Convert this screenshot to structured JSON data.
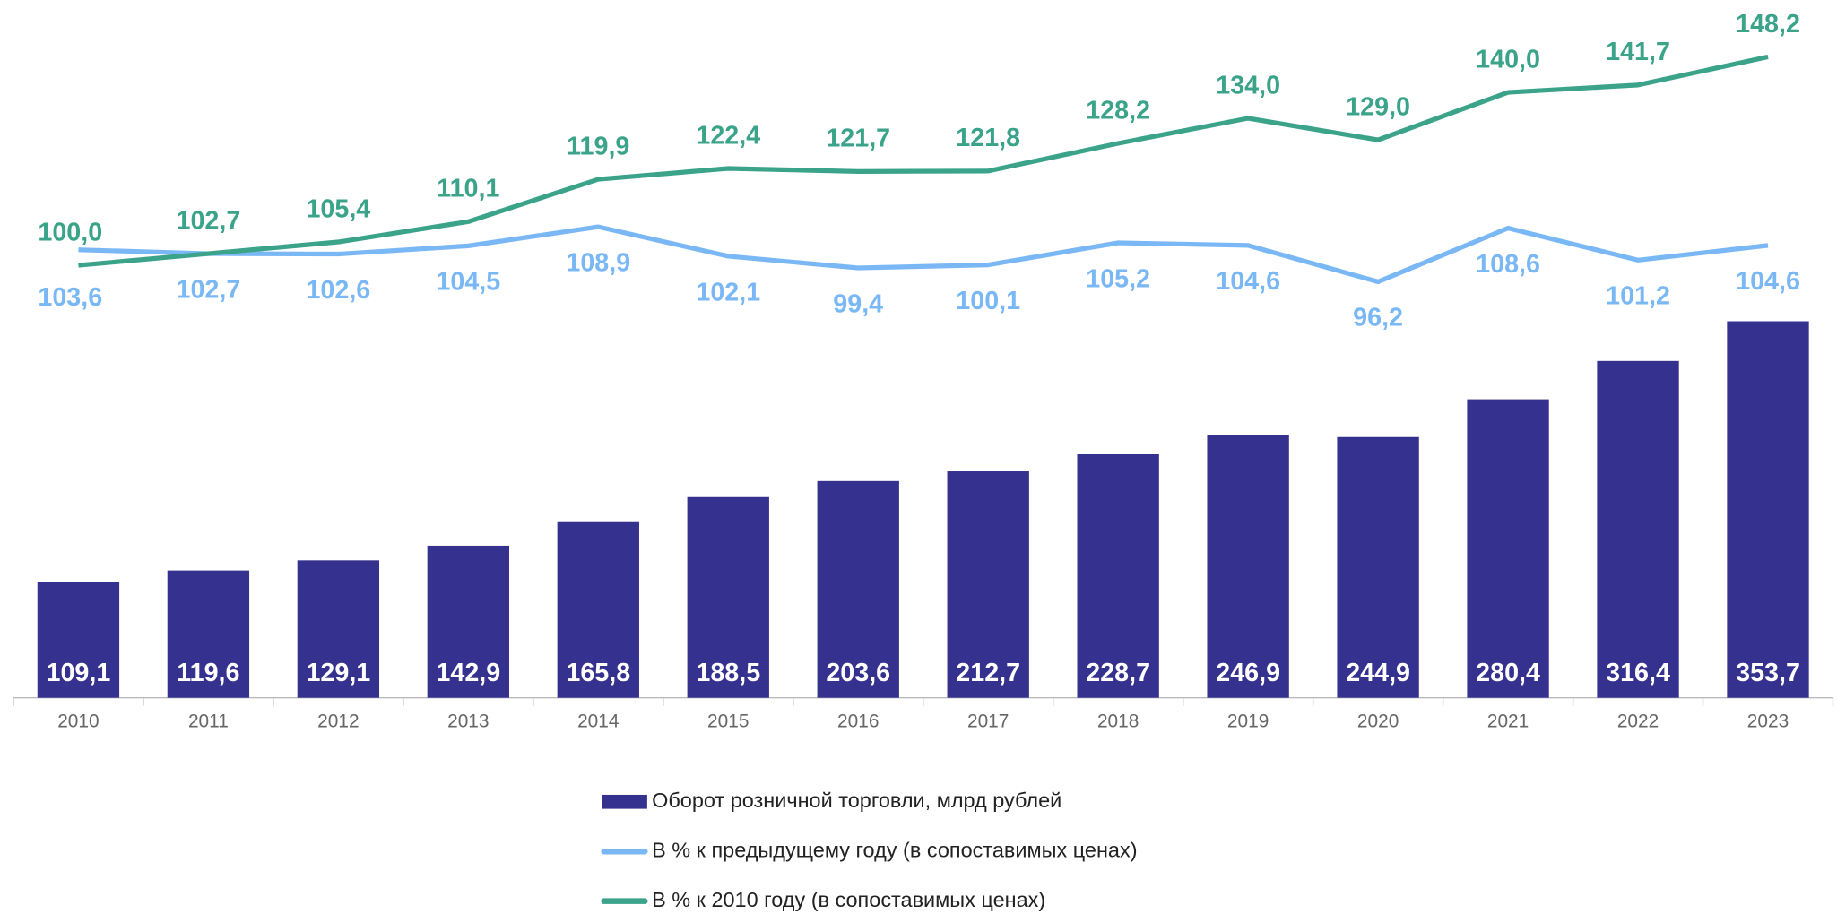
{
  "chart_data": {
    "type": "combo",
    "categories": [
      "2010",
      "2011",
      "2012",
      "2013",
      "2014",
      "2015",
      "2016",
      "2017",
      "2018",
      "2019",
      "2020",
      "2021",
      "2022",
      "2023"
    ],
    "ylim": [
      0,
      650
    ],
    "y2lim": [
      0,
      160
    ],
    "series": [
      {
        "name": "Оборот розничной торговли, млрд рублей",
        "type": "bar",
        "color": "#35318f",
        "values": [
          109.1,
          119.6,
          129.1,
          142.9,
          165.8,
          188.5,
          203.6,
          212.7,
          228.7,
          246.9,
          244.9,
          280.4,
          316.4,
          353.7
        ],
        "value_labels": [
          "109,1",
          "119,6",
          "129,1",
          "142,9",
          "165,8",
          "188,5",
          "203,6",
          "212,7",
          "228,7",
          "246,9",
          "244,9",
          "280,4",
          "316,4",
          "353,7"
        ]
      },
      {
        "name": "В % к предыдущему году (в сопоставимых ценах)",
        "type": "line",
        "axis": "y2",
        "color": "#7ab8f5",
        "values": [
          103.6,
          102.7,
          102.6,
          104.5,
          108.9,
          102.1,
          99.4,
          100.1,
          105.2,
          104.6,
          96.2,
          108.6,
          101.2,
          104.6
        ],
        "value_labels": [
          "103,6",
          "102,7",
          "102,6",
          "104,5",
          "108,9",
          "102,1",
          "99,4",
          "100,1",
          "105,2",
          "104,6",
          "96,2",
          "108,6",
          "101,2",
          "104,6"
        ]
      },
      {
        "name": "В % к 2010 году (в сопоставимых ценах)",
        "type": "line",
        "axis": "y2",
        "color": "#3aa38a",
        "values": [
          100.0,
          102.7,
          105.4,
          110.1,
          119.9,
          122.4,
          121.7,
          121.8,
          128.2,
          134.0,
          129.0,
          140.0,
          141.7,
          148.2
        ],
        "value_labels": [
          "100,0",
          "102,7",
          "105,4",
          "110,1",
          "119,9",
          "122,4",
          "121,7",
          "121,8",
          "128,2",
          "134,0",
          "129,0",
          "140,0",
          "141,7",
          "148,2"
        ]
      }
    ]
  }
}
